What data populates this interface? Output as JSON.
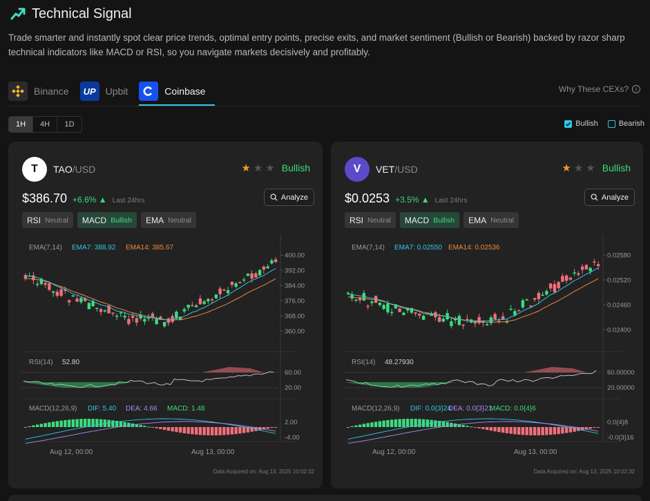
{
  "header": {
    "title": "Technical Signal",
    "logo_icon": "trend-up-icon"
  },
  "description": "Trade smarter and instantly spot clear price trends, optimal entry points, precise exits, and market sentiment (Bullish or Bearish) backed by razor sharp technical indicators like MACD or RSI, so you navigate markets decisively and profitably.",
  "tabs": [
    {
      "label": "Binance",
      "icon": "binance-icon",
      "active": false
    },
    {
      "label": "Upbit",
      "icon": "upbit-icon",
      "icon_text": "UP",
      "active": false
    },
    {
      "label": "Coinbase",
      "icon": "coinbase-icon",
      "active": true
    }
  ],
  "why_link": "Why These CEXs?",
  "timeframes": [
    "1H",
    "4H",
    "1D"
  ],
  "selected_timeframe": "1H",
  "filters": [
    {
      "label": "Bullish",
      "checked": true
    },
    {
      "label": "Bearish",
      "checked": false
    }
  ],
  "colors": {
    "accent": "#33c7e6",
    "bull": "#3ddc7f",
    "bear": "#f0707a",
    "ema7": "#33c7e6",
    "ema14": "#f0883e",
    "dea": "#a78bfa"
  },
  "cards": [
    {
      "logo_text": "T",
      "base": "TAO",
      "quote": "/USD",
      "stars": 1,
      "signal": "Bullish",
      "price": "$386.70",
      "change": "+6.6%",
      "period": "Last 24hrs",
      "analyze_label": "Analyze",
      "indicators": [
        {
          "name": "RSI",
          "status": "Neutral"
        },
        {
          "name": "MACD",
          "status": "Bullish"
        },
        {
          "name": "EMA",
          "status": "Neutral"
        }
      ],
      "ema_label": "EMA(7,14)",
      "ema7_label": "EMA7: 388.92",
      "ema14_label": "EMA14: 385.67",
      "rsi_label": "RSI(14)",
      "rsi_value": "52.80",
      "macd_label": "MACD(12,26,9)",
      "dif_label": "DIF: 5.40",
      "dea_label": "DEA: 4.66",
      "macd_value": "MACD: 1.48",
      "price_ticks": [
        "400.00",
        "392.00",
        "384.00",
        "376.00",
        "368.00",
        "360.00"
      ],
      "rsi_ticks": [
        "60.00",
        "20.00"
      ],
      "macd_ticks": [
        "2.00",
        "-4.00"
      ],
      "time_ticks": [
        "Aug 12, 00:00",
        "Aug 13, 00:00"
      ],
      "acquired": "Data Acquired on: Aug 13, 2025 10:02:32"
    },
    {
      "logo_text": "V",
      "base": "VET",
      "quote": "/USD",
      "stars": 1,
      "signal": "Bullish",
      "price": "$0.0253",
      "change": "+3.5%",
      "period": "Last 24hrs",
      "analyze_label": "Analyze",
      "indicators": [
        {
          "name": "RSI",
          "status": "Neutral"
        },
        {
          "name": "MACD",
          "status": "Bullish"
        },
        {
          "name": "EMA",
          "status": "Neutral"
        }
      ],
      "ema_label": "EMA(7,14)",
      "ema7_label": "EMA7: 0.02550",
      "ema14_label": "EMA14: 0.02536",
      "rsi_label": "RSI(14)",
      "rsi_value": "48.27930",
      "macd_label": "MACD(12,26,9)",
      "dif_label": "DIF: 0.0{3}24",
      "dea_label": "DEA: 0.0{3}21",
      "macd_value": "MACD: 0.0{4}6",
      "price_ticks": [
        "0.02580",
        "0.02520",
        "0.02460",
        "0.02400"
      ],
      "rsi_ticks": [
        "60.00000",
        "20.00000"
      ],
      "macd_ticks": [
        "0.0{4}8",
        "-0.0{3}16"
      ],
      "time_ticks": [
        "Aug 12, 00:00",
        "Aug 13, 00:00"
      ],
      "acquired": "Data Acquired on: Aug 13, 2025 10:02:32"
    }
  ]
}
